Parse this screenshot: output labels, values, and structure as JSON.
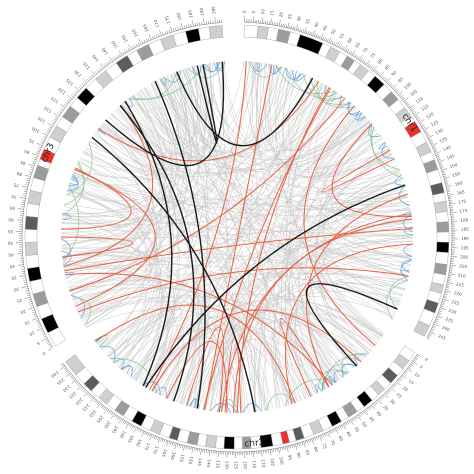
{
  "colors": {
    "gneg": "#ffffff",
    "gpos25": "#cfcfcf",
    "gpos50": "#9c9c9c",
    "gpos75": "#5c5c5c",
    "gpos100": "#000000",
    "acen": "#e8332a",
    "link_grey": "#c4c4c4",
    "link_red": "#ea5a3a",
    "link_black": "#1a1a1a",
    "link_green": "#8fc49a",
    "link_blue": "#6aa8dc"
  },
  "chromosomes": [
    {
      "name": "chr1",
      "length": 249,
      "tick_step": 5,
      "bands": [
        [
          "gneg",
          0,
          8
        ],
        [
          "gpos25",
          8,
          14
        ],
        [
          "gneg",
          14,
          20
        ],
        [
          "gpos50",
          20,
          27
        ],
        [
          "gneg",
          27,
          33
        ],
        [
          "gpos100",
          33,
          47
        ],
        [
          "gneg",
          47,
          52
        ],
        [
          "gpos25",
          52,
          58
        ],
        [
          "gneg",
          58,
          63
        ],
        [
          "gpos50",
          63,
          68
        ],
        [
          "gneg",
          68,
          72
        ],
        [
          "gpos25",
          72,
          78
        ],
        [
          "gneg",
          78,
          83
        ],
        [
          "gpos100",
          83,
          90
        ],
        [
          "gneg",
          90,
          96
        ],
        [
          "gpos50",
          96,
          102
        ],
        [
          "gneg",
          102,
          108
        ],
        [
          "gpos25",
          108,
          114
        ],
        [
          "gneg",
          114,
          118
        ],
        [
          "acen",
          118,
          125
        ],
        [
          "gneg",
          125,
          132
        ],
        [
          "gpos25",
          132,
          138
        ],
        [
          "gneg",
          138,
          143
        ],
        [
          "gpos50",
          143,
          149
        ],
        [
          "gneg",
          149,
          157
        ],
        [
          "gpos75",
          157,
          163
        ],
        [
          "gneg",
          163,
          168
        ],
        [
          "gpos25",
          168,
          174
        ],
        [
          "gneg",
          174,
          180
        ],
        [
          "gpos50",
          180,
          186
        ],
        [
          "gneg",
          186,
          192
        ],
        [
          "gpos100",
          192,
          198
        ],
        [
          "gneg",
          198,
          205
        ],
        [
          "gpos50",
          205,
          211
        ],
        [
          "gneg",
          211,
          217
        ],
        [
          "gpos25",
          217,
          222
        ],
        [
          "gneg",
          222,
          228
        ],
        [
          "gpos75",
          228,
          234
        ],
        [
          "gneg",
          234,
          242
        ],
        [
          "gpos25",
          242,
          249
        ]
      ]
    },
    {
      "name": "chr2",
      "length": 242,
      "tick_step": 5,
      "bands": [
        [
          "gneg",
          0,
          6
        ],
        [
          "gpos25",
          6,
          12
        ],
        [
          "gneg",
          12,
          17
        ],
        [
          "gpos75",
          17,
          23
        ],
        [
          "gneg",
          23,
          28
        ],
        [
          "gpos25",
          28,
          33
        ],
        [
          "gneg",
          33,
          38
        ],
        [
          "gpos100",
          38,
          44
        ],
        [
          "gneg",
          44,
          49
        ],
        [
          "gpos50",
          49,
          55
        ],
        [
          "gneg",
          55,
          60
        ],
        [
          "gpos100",
          60,
          66
        ],
        [
          "gneg",
          66,
          72
        ],
        [
          "gpos25",
          72,
          78
        ],
        [
          "gneg",
          78,
          84
        ],
        [
          "gpos75",
          84,
          89
        ],
        [
          "gneg",
          89,
          93
        ],
        [
          "acen",
          93,
          97
        ],
        [
          "gneg",
          97,
          103
        ],
        [
          "gpos100",
          103,
          110
        ],
        [
          "gneg",
          110,
          116
        ],
        [
          "gpos50",
          116,
          121
        ],
        [
          "gneg",
          121,
          126
        ],
        [
          "gpos100",
          126,
          132
        ],
        [
          "gneg",
          132,
          137
        ],
        [
          "gpos25",
          137,
          143
        ],
        [
          "gneg",
          143,
          148
        ],
        [
          "gpos50",
          148,
          154
        ],
        [
          "gneg",
          154,
          160
        ],
        [
          "gpos75",
          160,
          165
        ],
        [
          "gneg",
          165,
          171
        ],
        [
          "gpos25",
          171,
          177
        ],
        [
          "gneg",
          177,
          183
        ],
        [
          "gpos100",
          183,
          189
        ],
        [
          "gneg",
          189,
          195
        ],
        [
          "gpos50",
          195,
          201
        ],
        [
          "gneg",
          201,
          207
        ],
        [
          "gpos25",
          207,
          213
        ],
        [
          "gneg",
          213,
          219
        ],
        [
          "gpos75",
          219,
          225
        ],
        [
          "gneg",
          225,
          232
        ],
        [
          "gpos25",
          232,
          242
        ]
      ]
    },
    {
      "name": "chr3",
      "length": 198,
      "tick_step": 5,
      "bands": [
        [
          "gneg",
          0,
          7
        ],
        [
          "gpos100",
          7,
          14
        ],
        [
          "gneg",
          14,
          20
        ],
        [
          "gpos50",
          20,
          26
        ],
        [
          "gneg",
          26,
          32
        ],
        [
          "gpos100",
          32,
          38
        ],
        [
          "gneg",
          38,
          44
        ],
        [
          "gpos25",
          44,
          50
        ],
        [
          "gneg",
          50,
          56
        ],
        [
          "gpos75",
          56,
          62
        ],
        [
          "gneg",
          62,
          68
        ],
        [
          "gpos25",
          68,
          74
        ],
        [
          "gneg",
          74,
          80
        ],
        [
          "gpos50",
          80,
          86
        ],
        [
          "gneg",
          86,
          89
        ],
        [
          "acen",
          89,
          94
        ],
        [
          "gneg",
          94,
          100
        ],
        [
          "gpos25",
          100,
          106
        ],
        [
          "gneg",
          106,
          111
        ],
        [
          "gpos50",
          111,
          117
        ],
        [
          "gneg",
          117,
          122
        ],
        [
          "gpos100",
          122,
          128
        ],
        [
          "gneg",
          128,
          134
        ],
        [
          "gpos25",
          134,
          140
        ],
        [
          "gneg",
          140,
          146
        ],
        [
          "gpos75",
          146,
          152
        ],
        [
          "gneg",
          152,
          157
        ],
        [
          "gpos50",
          157,
          163
        ],
        [
          "gneg",
          163,
          169
        ],
        [
          "gpos25",
          169,
          175
        ],
        [
          "gneg",
          175,
          181
        ],
        [
          "gpos100",
          181,
          187
        ],
        [
          "gneg",
          187,
          192
        ],
        [
          "gpos25",
          192,
          198
        ]
      ]
    }
  ]
}
